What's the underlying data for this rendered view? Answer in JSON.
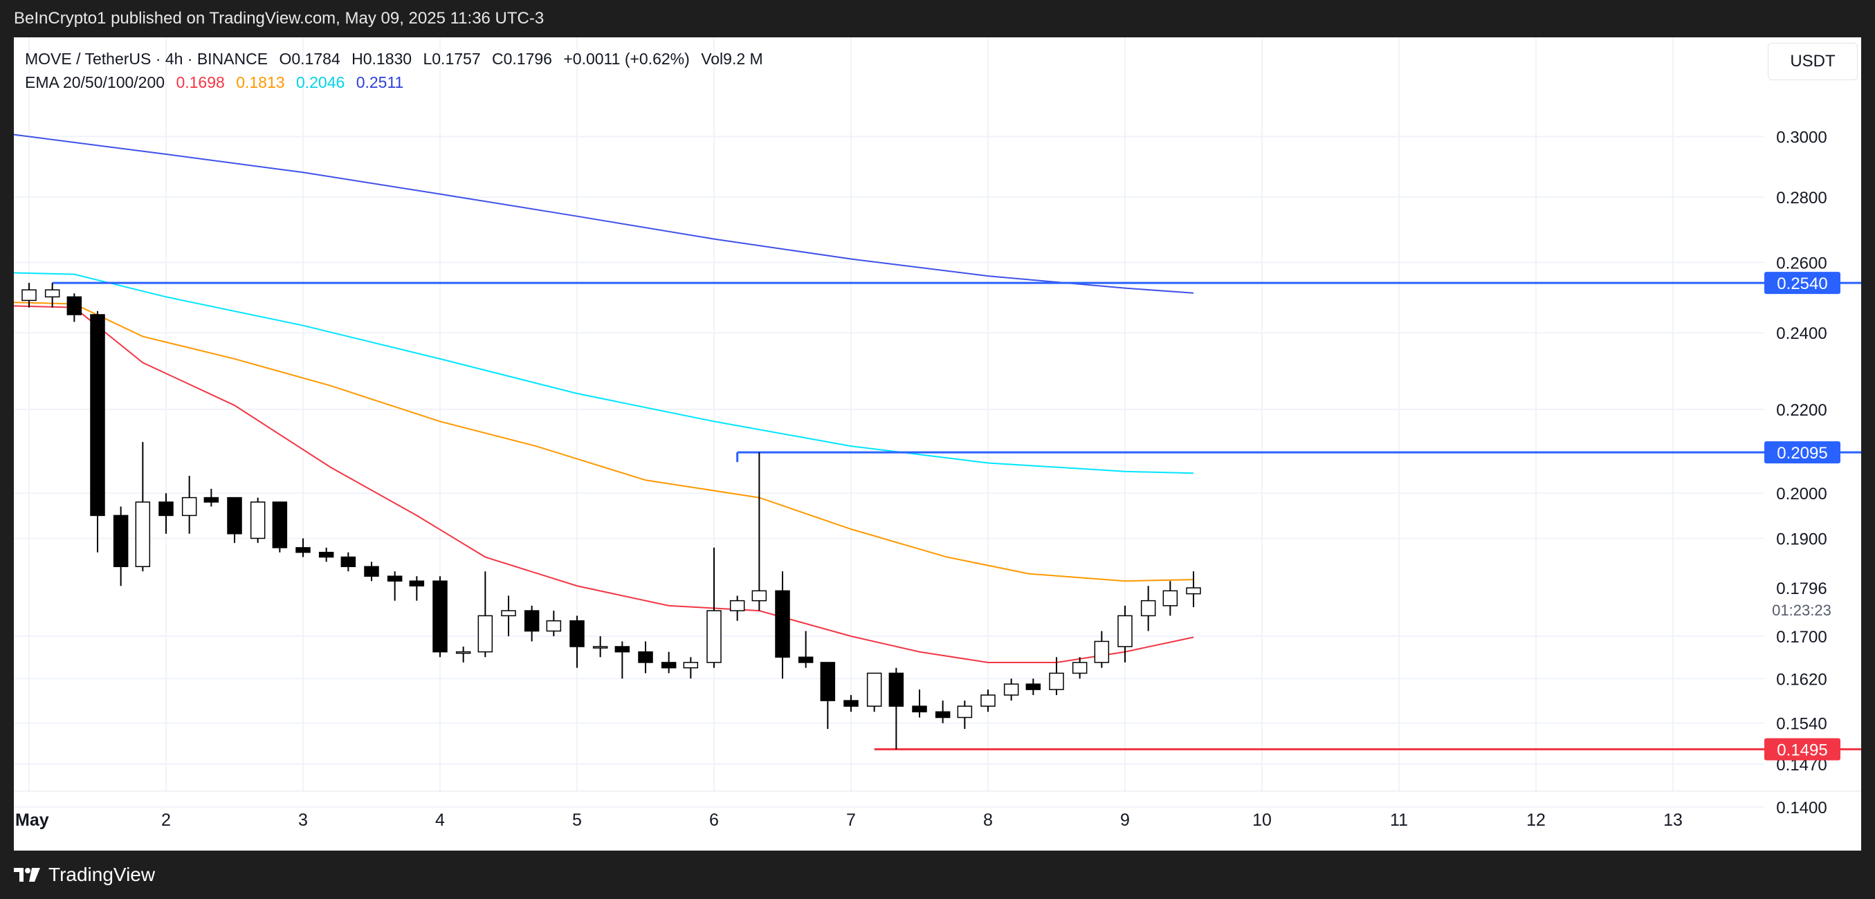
{
  "header": {
    "published_text": "BeInCrypto1 published on TradingView.com, May 09, 2025 11:36 UTC-3"
  },
  "footer": {
    "brand": "TradingView",
    "brand_icon": "tradingview-logo-icon"
  },
  "legend": {
    "symbol": "MOVE / TetherUS · 4h · BINANCE",
    "open": "O0.1784",
    "high": "H0.1830",
    "low": "L0.1757",
    "close": "C0.1796",
    "change": "+0.0011 (+0.62%)",
    "volume": "Vol9.2 M",
    "ema_label": "EMA 20/50/100/200",
    "ema20": "0.1698",
    "ema50": "0.1813",
    "ema100": "0.2046",
    "ema200": "0.2511"
  },
  "currency": "USDT",
  "colors": {
    "ema20": "#f23645",
    "ema50": "#ff9800",
    "ema100": "#00e5ff",
    "ema200": "#3f51e8",
    "level_blue": "#2962ff",
    "level_red": "#f23645",
    "candle_up": "#ffffff",
    "candle_down": "#000000"
  },
  "chart_data": {
    "type": "candlestick",
    "symbol": "MOVE/USDT",
    "timeframe": "4h",
    "x_tick_labels": [
      "May",
      "2",
      "3",
      "4",
      "5",
      "6",
      "7",
      "8",
      "9",
      "10",
      "11",
      "12",
      "13"
    ],
    "x_tick_days": [
      1,
      2,
      3,
      4,
      5,
      6,
      7,
      8,
      9,
      10,
      11,
      12,
      13
    ],
    "x_range_days": [
      0.9,
      14.7
    ],
    "y_scale": "log",
    "y_range": [
      0.14,
      0.307
    ],
    "y_tick_labels": [
      "0.3000",
      "0.2800",
      "0.2600",
      "0.2400",
      "0.2200",
      "0.2000",
      "0.1900",
      "0.1700",
      "0.1620",
      "0.1540",
      "0.1470",
      "0.1400"
    ],
    "y_tick_values": [
      0.3,
      0.28,
      0.26,
      0.24,
      0.22,
      0.2,
      0.19,
      0.17,
      0.162,
      0.154,
      0.147,
      0.14
    ],
    "price_label": {
      "value": 0.1796,
      "text": "0.1796",
      "countdown": "01:23:23"
    },
    "levels": [
      {
        "value": 0.254,
        "text": "0.2540",
        "color": "blue",
        "from_day": 1.17
      },
      {
        "value": 0.2095,
        "text": "0.2095",
        "color": "blue",
        "from_day": 6.17
      },
      {
        "value": 0.1495,
        "text": "0.1495",
        "color": "red",
        "from_day": 7.17
      }
    ],
    "candles": [
      {
        "d": 0.83,
        "o": 0.248,
        "h": 0.252,
        "l": 0.246,
        "c": 0.25
      },
      {
        "d": 1.0,
        "o": 0.249,
        "h": 0.254,
        "l": 0.247,
        "c": 0.252
      },
      {
        "d": 1.17,
        "o": 0.25,
        "h": 0.254,
        "l": 0.247,
        "c": 0.252
      },
      {
        "d": 1.33,
        "o": 0.25,
        "h": 0.251,
        "l": 0.243,
        "c": 0.245
      },
      {
        "d": 1.5,
        "o": 0.245,
        "h": 0.246,
        "l": 0.187,
        "c": 0.195
      },
      {
        "d": 1.67,
        "o": 0.195,
        "h": 0.197,
        "l": 0.18,
        "c": 0.184
      },
      {
        "d": 1.83,
        "o": 0.184,
        "h": 0.212,
        "l": 0.183,
        "c": 0.198
      },
      {
        "d": 2.0,
        "o": 0.198,
        "h": 0.2,
        "l": 0.191,
        "c": 0.195
      },
      {
        "d": 2.17,
        "o": 0.195,
        "h": 0.204,
        "l": 0.191,
        "c": 0.199
      },
      {
        "d": 2.33,
        "o": 0.199,
        "h": 0.201,
        "l": 0.197,
        "c": 0.198
      },
      {
        "d": 2.5,
        "o": 0.199,
        "h": 0.199,
        "l": 0.189,
        "c": 0.191
      },
      {
        "d": 2.67,
        "o": 0.19,
        "h": 0.199,
        "l": 0.189,
        "c": 0.198
      },
      {
        "d": 2.83,
        "o": 0.198,
        "h": 0.198,
        "l": 0.187,
        "c": 0.188
      },
      {
        "d": 3.0,
        "o": 0.188,
        "h": 0.19,
        "l": 0.186,
        "c": 0.187
      },
      {
        "d": 3.17,
        "o": 0.187,
        "h": 0.188,
        "l": 0.185,
        "c": 0.186
      },
      {
        "d": 3.33,
        "o": 0.186,
        "h": 0.187,
        "l": 0.183,
        "c": 0.184
      },
      {
        "d": 3.5,
        "o": 0.184,
        "h": 0.185,
        "l": 0.181,
        "c": 0.182
      },
      {
        "d": 3.67,
        "o": 0.182,
        "h": 0.183,
        "l": 0.177,
        "c": 0.181
      },
      {
        "d": 3.83,
        "o": 0.181,
        "h": 0.182,
        "l": 0.177,
        "c": 0.18
      },
      {
        "d": 4.0,
        "o": 0.181,
        "h": 0.182,
        "l": 0.166,
        "c": 0.167
      },
      {
        "d": 4.17,
        "o": 0.167,
        "h": 0.168,
        "l": 0.165,
        "c": 0.167
      },
      {
        "d": 4.33,
        "o": 0.167,
        "h": 0.183,
        "l": 0.166,
        "c": 0.174
      },
      {
        "d": 4.5,
        "o": 0.174,
        "h": 0.178,
        "l": 0.17,
        "c": 0.175
      },
      {
        "d": 4.67,
        "o": 0.175,
        "h": 0.176,
        "l": 0.169,
        "c": 0.171
      },
      {
        "d": 4.83,
        "o": 0.171,
        "h": 0.175,
        "l": 0.17,
        "c": 0.173
      },
      {
        "d": 5.0,
        "o": 0.173,
        "h": 0.174,
        "l": 0.164,
        "c": 0.168
      },
      {
        "d": 5.17,
        "o": 0.168,
        "h": 0.17,
        "l": 0.166,
        "c": 0.168
      },
      {
        "d": 5.33,
        "o": 0.168,
        "h": 0.169,
        "l": 0.162,
        "c": 0.167
      },
      {
        "d": 5.5,
        "o": 0.167,
        "h": 0.169,
        "l": 0.163,
        "c": 0.165
      },
      {
        "d": 5.67,
        "o": 0.165,
        "h": 0.167,
        "l": 0.163,
        "c": 0.164
      },
      {
        "d": 5.83,
        "o": 0.164,
        "h": 0.166,
        "l": 0.162,
        "c": 0.165
      },
      {
        "d": 6.0,
        "o": 0.165,
        "h": 0.188,
        "l": 0.164,
        "c": 0.175
      },
      {
        "d": 6.17,
        "o": 0.175,
        "h": 0.178,
        "l": 0.173,
        "c": 0.177
      },
      {
        "d": 6.33,
        "o": 0.177,
        "h": 0.2095,
        "l": 0.175,
        "c": 0.179
      },
      {
        "d": 6.5,
        "o": 0.179,
        "h": 0.183,
        "l": 0.162,
        "c": 0.166
      },
      {
        "d": 6.67,
        "o": 0.166,
        "h": 0.171,
        "l": 0.164,
        "c": 0.165
      },
      {
        "d": 6.83,
        "o": 0.165,
        "h": 0.165,
        "l": 0.153,
        "c": 0.158
      },
      {
        "d": 7.0,
        "o": 0.158,
        "h": 0.159,
        "l": 0.156,
        "c": 0.157
      },
      {
        "d": 7.17,
        "o": 0.157,
        "h": 0.163,
        "l": 0.156,
        "c": 0.163
      },
      {
        "d": 7.33,
        "o": 0.163,
        "h": 0.164,
        "l": 0.1495,
        "c": 0.157
      },
      {
        "d": 7.5,
        "o": 0.157,
        "h": 0.16,
        "l": 0.155,
        "c": 0.156
      },
      {
        "d": 7.67,
        "o": 0.156,
        "h": 0.158,
        "l": 0.154,
        "c": 0.155
      },
      {
        "d": 7.83,
        "o": 0.155,
        "h": 0.158,
        "l": 0.153,
        "c": 0.157
      },
      {
        "d": 8.0,
        "o": 0.157,
        "h": 0.16,
        "l": 0.156,
        "c": 0.159
      },
      {
        "d": 8.17,
        "o": 0.159,
        "h": 0.162,
        "l": 0.158,
        "c": 0.161
      },
      {
        "d": 8.33,
        "o": 0.161,
        "h": 0.162,
        "l": 0.159,
        "c": 0.16
      },
      {
        "d": 8.5,
        "o": 0.16,
        "h": 0.166,
        "l": 0.159,
        "c": 0.163
      },
      {
        "d": 8.67,
        "o": 0.163,
        "h": 0.166,
        "l": 0.162,
        "c": 0.165
      },
      {
        "d": 8.83,
        "o": 0.165,
        "h": 0.171,
        "l": 0.164,
        "c": 0.169
      },
      {
        "d": 9.0,
        "o": 0.168,
        "h": 0.176,
        "l": 0.165,
        "c": 0.174
      },
      {
        "d": 9.17,
        "o": 0.174,
        "h": 0.18,
        "l": 0.171,
        "c": 0.177
      },
      {
        "d": 9.33,
        "o": 0.176,
        "h": 0.181,
        "l": 0.174,
        "c": 0.179
      },
      {
        "d": 9.5,
        "o": 0.1784,
        "h": 0.183,
        "l": 0.1757,
        "c": 0.1796
      }
    ],
    "series": [
      {
        "name": "EMA 20",
        "color": "ema20",
        "x": [
          0.83,
          1.33,
          1.83,
          2.5,
          3.2,
          3.83,
          4.33,
          5.0,
          5.67,
          6.33,
          7.0,
          7.5,
          8.0,
          8.5,
          9.0,
          9.5
        ],
        "y": [
          0.2475,
          0.247,
          0.232,
          0.221,
          0.206,
          0.195,
          0.186,
          0.18,
          0.176,
          0.175,
          0.17,
          0.167,
          0.165,
          0.165,
          0.167,
          0.1698
        ]
      },
      {
        "name": "EMA 50",
        "color": "ema50",
        "x": [
          0.83,
          1.33,
          1.83,
          2.5,
          3.2,
          4.0,
          4.7,
          5.5,
          6.33,
          7.0,
          7.7,
          8.3,
          9.0,
          9.5
        ],
        "y": [
          0.2485,
          0.248,
          0.239,
          0.233,
          0.226,
          0.217,
          0.211,
          0.203,
          0.199,
          0.192,
          0.186,
          0.1825,
          0.181,
          0.1813
        ]
      },
      {
        "name": "EMA 100",
        "color": "ema100",
        "x": [
          0.83,
          1.33,
          2.0,
          3.0,
          4.0,
          5.0,
          6.0,
          7.0,
          8.0,
          9.0,
          9.5
        ],
        "y": [
          0.257,
          0.2565,
          0.25,
          0.242,
          0.233,
          0.224,
          0.217,
          0.211,
          0.207,
          0.205,
          0.2046
        ]
      },
      {
        "name": "EMA 200",
        "color": "ema200",
        "x": [
          0.83,
          2.0,
          3.0,
          4.0,
          5.0,
          6.0,
          7.0,
          8.0,
          9.0,
          9.5
        ],
        "y": [
          0.301,
          0.294,
          0.288,
          0.281,
          0.274,
          0.267,
          0.261,
          0.256,
          0.2525,
          0.2511
        ]
      }
    ]
  }
}
